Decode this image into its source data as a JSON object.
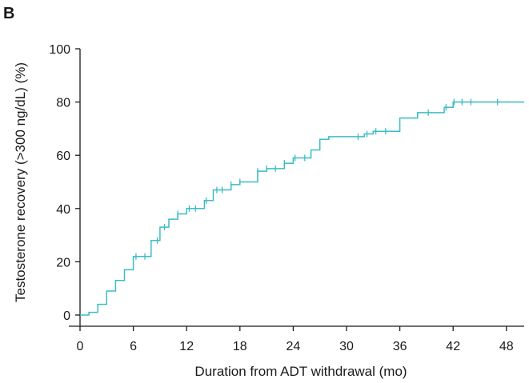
{
  "panel_label": "B",
  "chart_data": {
    "type": "line",
    "xlabel": "Duration from ADT withdrawal (mo)",
    "ylabel": "Testosterone recovery (>300 ng/dL) (%)",
    "xlim": [
      0,
      50
    ],
    "ylim": [
      0,
      100
    ],
    "x_ticks": [
      0,
      6,
      12,
      18,
      24,
      30,
      36,
      42,
      48
    ],
    "y_ticks": [
      0,
      20,
      40,
      60,
      80,
      100
    ],
    "line_color": "#3bbcc4",
    "grid": false,
    "series": [
      {
        "step": [
          [
            0,
            0
          ],
          [
            1,
            1
          ],
          [
            2,
            4
          ],
          [
            3,
            9
          ],
          [
            4,
            13
          ],
          [
            5,
            17
          ],
          [
            6,
            22
          ],
          [
            8,
            28
          ],
          [
            9,
            33
          ],
          [
            10,
            36
          ],
          [
            11,
            38
          ],
          [
            12,
            40
          ],
          [
            14,
            43
          ],
          [
            15,
            47
          ],
          [
            17,
            49
          ],
          [
            18,
            50
          ],
          [
            20,
            54
          ],
          [
            21,
            55
          ],
          [
            23,
            57
          ],
          [
            24,
            59
          ],
          [
            26,
            62
          ],
          [
            27,
            66
          ],
          [
            28,
            67
          ],
          [
            32,
            68
          ],
          [
            33,
            69
          ],
          [
            36,
            74
          ],
          [
            38,
            76
          ],
          [
            41,
            78
          ],
          [
            42,
            80
          ],
          [
            50,
            80
          ]
        ],
        "censor_x": [
          6.3,
          7.3,
          8.7,
          9.5,
          11,
          12.3,
          13,
          14.2,
          15.4,
          16,
          17,
          18,
          20,
          21,
          22,
          23,
          24.2,
          25.3,
          31.3,
          32.3,
          33.3,
          34.4,
          39.2,
          41.2,
          42.1,
          43,
          44,
          47
        ]
      }
    ]
  }
}
